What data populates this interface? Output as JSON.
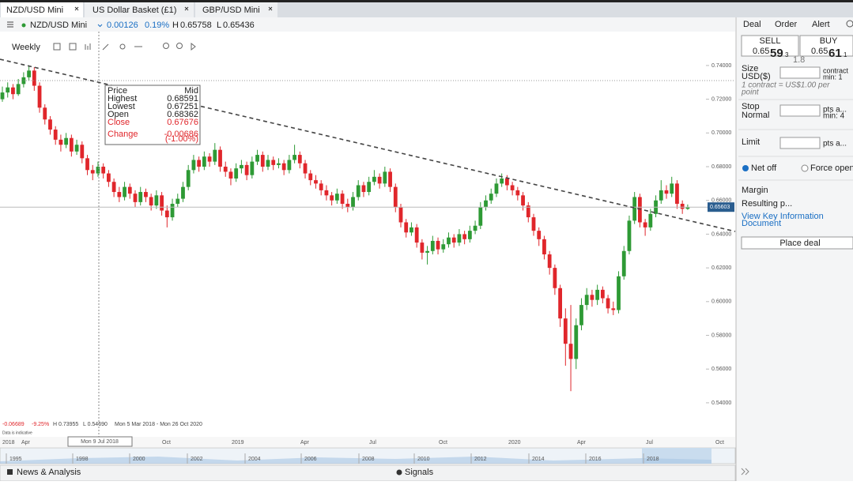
{
  "tabs": [
    "NZD/USD Mini",
    "US Dollar Basket (£1)",
    "GBP/USD Mini"
  ],
  "instrument": {
    "name": "NZD/USD Mini",
    "change": "0.00126",
    "change_pct": "0.19%",
    "high_label": "H",
    "high": "0.65758",
    "low_label": "L",
    "low": "0.65436"
  },
  "toolbar": {
    "interval": "Weekly"
  },
  "chart": {
    "type": "candlestick",
    "colors": {
      "up": "#2e9a35",
      "down": "#e0262b"
    },
    "ylim": [
      0.5306,
      0.7601
    ],
    "yticks": [
      {
        "value": 0.74,
        "label": "0.74000"
      },
      {
        "value": 0.72,
        "label": "0.72000"
      },
      {
        "value": 0.7,
        "label": "0.70000"
      },
      {
        "value": 0.68,
        "label": "0.68000"
      },
      {
        "value": 0.66,
        "label": "0.66000"
      },
      {
        "value": 0.64,
        "label": "0.64000"
      },
      {
        "value": 0.62,
        "label": "0.62000"
      },
      {
        "value": 0.6,
        "label": "0.60000"
      },
      {
        "value": 0.58,
        "label": "0.58000"
      },
      {
        "value": 0.56,
        "label": "0.56000"
      },
      {
        "value": 0.54,
        "label": "0.54000"
      }
    ],
    "current_price": {
      "value": 0.65603,
      "label": "0.65603"
    },
    "candles": [
      [
        0.72,
        0.7275,
        0.7185,
        0.724
      ],
      [
        0.724,
        0.73,
        0.721,
        0.727
      ],
      [
        0.727,
        0.729,
        0.72,
        0.723
      ],
      [
        0.723,
        0.732,
        0.722,
        0.729
      ],
      [
        0.729,
        0.736,
        0.727,
        0.733
      ],
      [
        0.733,
        0.7396,
        0.731,
        0.737
      ],
      [
        0.737,
        0.739,
        0.725,
        0.728
      ],
      [
        0.728,
        0.73,
        0.712,
        0.715
      ],
      [
        0.715,
        0.717,
        0.705,
        0.708
      ],
      [
        0.708,
        0.71,
        0.699,
        0.702
      ],
      [
        0.702,
        0.704,
        0.693,
        0.696
      ],
      [
        0.696,
        0.699,
        0.689,
        0.693
      ],
      [
        0.693,
        0.7,
        0.691,
        0.697
      ],
      [
        0.697,
        0.699,
        0.686,
        0.689
      ],
      [
        0.689,
        0.696,
        0.687,
        0.693
      ],
      [
        0.693,
        0.695,
        0.682,
        0.685
      ],
      [
        0.685,
        0.687,
        0.675,
        0.678
      ],
      [
        0.678,
        0.681,
        0.672,
        0.676
      ],
      [
        0.676,
        0.683,
        0.674,
        0.68
      ],
      [
        0.68,
        0.682,
        0.673,
        0.676
      ],
      [
        0.676,
        0.678,
        0.668,
        0.671
      ],
      [
        0.671,
        0.673,
        0.662,
        0.665
      ],
      [
        0.665,
        0.668,
        0.659,
        0.662
      ],
      [
        0.662,
        0.671,
        0.66,
        0.668
      ],
      [
        0.668,
        0.67,
        0.661,
        0.664
      ],
      [
        0.664,
        0.666,
        0.656,
        0.659
      ],
      [
        0.659,
        0.668,
        0.657,
        0.665
      ],
      [
        0.665,
        0.667,
        0.659,
        0.662
      ],
      [
        0.662,
        0.664,
        0.654,
        0.657
      ],
      [
        0.657,
        0.666,
        0.655,
        0.663
      ],
      [
        0.663,
        0.665,
        0.651,
        0.654
      ],
      [
        0.654,
        0.657,
        0.644,
        0.65
      ],
      [
        0.65,
        0.661,
        0.648,
        0.658
      ],
      [
        0.658,
        0.664,
        0.656,
        0.661
      ],
      [
        0.661,
        0.671,
        0.659,
        0.668
      ],
      [
        0.668,
        0.681,
        0.666,
        0.678
      ],
      [
        0.678,
        0.687,
        0.676,
        0.684
      ],
      [
        0.684,
        0.686,
        0.677,
        0.68
      ],
      [
        0.68,
        0.689,
        0.678,
        0.686
      ],
      [
        0.686,
        0.688,
        0.68,
        0.683
      ],
      [
        0.683,
        0.694,
        0.681,
        0.69
      ],
      [
        0.69,
        0.692,
        0.677,
        0.68
      ],
      [
        0.68,
        0.683,
        0.674,
        0.677
      ],
      [
        0.677,
        0.679,
        0.669,
        0.673
      ],
      [
        0.673,
        0.682,
        0.671,
        0.679
      ],
      [
        0.679,
        0.684,
        0.676,
        0.681
      ],
      [
        0.681,
        0.683,
        0.672,
        0.675
      ],
      [
        0.675,
        0.686,
        0.673,
        0.683
      ],
      [
        0.683,
        0.69,
        0.681,
        0.687
      ],
      [
        0.687,
        0.689,
        0.677,
        0.68
      ],
      [
        0.68,
        0.687,
        0.678,
        0.684
      ],
      [
        0.684,
        0.686,
        0.678,
        0.681
      ],
      [
        0.681,
        0.685,
        0.679,
        0.682
      ],
      [
        0.682,
        0.684,
        0.675,
        0.678
      ],
      [
        0.678,
        0.687,
        0.676,
        0.684
      ],
      [
        0.684,
        0.693,
        0.682,
        0.687
      ],
      [
        0.687,
        0.689,
        0.679,
        0.682
      ],
      [
        0.682,
        0.684,
        0.673,
        0.676
      ],
      [
        0.676,
        0.678,
        0.669,
        0.672
      ],
      [
        0.672,
        0.675,
        0.667,
        0.67
      ],
      [
        0.67,
        0.672,
        0.663,
        0.666
      ],
      [
        0.666,
        0.669,
        0.66,
        0.663
      ],
      [
        0.663,
        0.665,
        0.657,
        0.66
      ],
      [
        0.66,
        0.667,
        0.658,
        0.664
      ],
      [
        0.664,
        0.666,
        0.655,
        0.658
      ],
      [
        0.658,
        0.661,
        0.653,
        0.656
      ],
      [
        0.656,
        0.665,
        0.654,
        0.662
      ],
      [
        0.662,
        0.672,
        0.66,
        0.669
      ],
      [
        0.669,
        0.671,
        0.662,
        0.665
      ],
      [
        0.665,
        0.674,
        0.663,
        0.671
      ],
      [
        0.671,
        0.678,
        0.669,
        0.674
      ],
      [
        0.674,
        0.676,
        0.667,
        0.67
      ],
      [
        0.67,
        0.68,
        0.668,
        0.677
      ],
      [
        0.677,
        0.679,
        0.665,
        0.668
      ],
      [
        0.668,
        0.67,
        0.653,
        0.656
      ],
      [
        0.656,
        0.658,
        0.644,
        0.647
      ],
      [
        0.647,
        0.649,
        0.638,
        0.641
      ],
      [
        0.641,
        0.647,
        0.639,
        0.644
      ],
      [
        0.644,
        0.646,
        0.632,
        0.635
      ],
      [
        0.635,
        0.637,
        0.625,
        0.629
      ],
      [
        0.629,
        0.633,
        0.622,
        0.63
      ],
      [
        0.63,
        0.639,
        0.628,
        0.636
      ],
      [
        0.636,
        0.638,
        0.628,
        0.631
      ],
      [
        0.631,
        0.637,
        0.629,
        0.634
      ],
      [
        0.634,
        0.641,
        0.632,
        0.638
      ],
      [
        0.638,
        0.64,
        0.632,
        0.635
      ],
      [
        0.635,
        0.643,
        0.633,
        0.64
      ],
      [
        0.64,
        0.642,
        0.634,
        0.637
      ],
      [
        0.637,
        0.645,
        0.635,
        0.642
      ],
      [
        0.642,
        0.648,
        0.64,
        0.645
      ],
      [
        0.645,
        0.659,
        0.643,
        0.656
      ],
      [
        0.656,
        0.663,
        0.654,
        0.66
      ],
      [
        0.66,
        0.667,
        0.658,
        0.664
      ],
      [
        0.664,
        0.673,
        0.662,
        0.67
      ],
      [
        0.67,
        0.676,
        0.668,
        0.673
      ],
      [
        0.673,
        0.675,
        0.666,
        0.669
      ],
      [
        0.669,
        0.671,
        0.663,
        0.666
      ],
      [
        0.666,
        0.668,
        0.66,
        0.663
      ],
      [
        0.663,
        0.665,
        0.654,
        0.657
      ],
      [
        0.657,
        0.659,
        0.647,
        0.65
      ],
      [
        0.65,
        0.652,
        0.639,
        0.642
      ],
      [
        0.642,
        0.644,
        0.633,
        0.637
      ],
      [
        0.637,
        0.639,
        0.625,
        0.628
      ],
      [
        0.628,
        0.63,
        0.616,
        0.62
      ],
      [
        0.62,
        0.622,
        0.604,
        0.608
      ],
      [
        0.608,
        0.61,
        0.585,
        0.59
      ],
      [
        0.59,
        0.596,
        0.562,
        0.575
      ],
      [
        0.575,
        0.598,
        0.5469,
        0.566
      ],
      [
        0.566,
        0.59,
        0.56,
        0.586
      ],
      [
        0.586,
        0.602,
        0.583,
        0.598
      ],
      [
        0.598,
        0.608,
        0.595,
        0.604
      ],
      [
        0.604,
        0.607,
        0.597,
        0.601
      ],
      [
        0.601,
        0.61,
        0.598,
        0.607
      ],
      [
        0.607,
        0.609,
        0.599,
        0.602
      ],
      [
        0.602,
        0.604,
        0.593,
        0.596
      ],
      [
        0.596,
        0.6,
        0.592,
        0.595
      ],
      [
        0.595,
        0.618,
        0.593,
        0.615
      ],
      [
        0.615,
        0.633,
        0.613,
        0.63
      ],
      [
        0.63,
        0.651,
        0.628,
        0.648
      ],
      [
        0.648,
        0.665,
        0.646,
        0.662
      ],
      [
        0.662,
        0.664,
        0.644,
        0.647
      ],
      [
        0.647,
        0.649,
        0.639,
        0.644
      ],
      [
        0.644,
        0.655,
        0.642,
        0.652
      ],
      [
        0.652,
        0.663,
        0.65,
        0.66
      ],
      [
        0.66,
        0.672,
        0.658,
        0.666
      ],
      [
        0.666,
        0.669,
        0.661,
        0.664
      ],
      [
        0.664,
        0.674,
        0.662,
        0.67
      ],
      [
        0.67,
        0.672,
        0.655,
        0.658
      ],
      [
        0.658,
        0.66,
        0.652,
        0.655
      ],
      [
        0.655,
        0.6576,
        0.6544,
        0.656
      ]
    ],
    "info_box": {
      "header_left": "Price",
      "header_right": "Mid",
      "rows": [
        [
          "Highest",
          "0.68591"
        ],
        [
          "Lowest",
          "0.67251"
        ],
        [
          "Open",
          "0.68362"
        ],
        [
          "Close",
          "0.67676"
        ],
        [
          "Change",
          "-0.00686"
        ]
      ],
      "change_pct": "(-1.00%)"
    },
    "summary": {
      "change": "-0.06689",
      "change_pct": "-9.25%",
      "high": "H 0.73955",
      "low": "L 0.54690",
      "range": "Mon 5 Mar 2018 - Mon 26 Oct 2020",
      "note": "Data is indicative"
    },
    "x_labels": [
      "2018",
      "Apr",
      "Oct",
      "2019",
      "Apr",
      "Jul",
      "Oct",
      "2020",
      "Apr",
      "Jul",
      "Oct"
    ],
    "cursor_date": "Mon 9 Jul 2018",
    "navigator_labels": [
      "1995",
      "1998",
      "2000",
      "2002",
      "2004",
      "2006",
      "2008",
      "2010",
      "2012",
      "2014",
      "2016",
      "2018"
    ]
  },
  "panel": {
    "tabs": [
      "Deal",
      "Order",
      "Alert"
    ],
    "sell": {
      "label": "SELL",
      "price_main": "0.65",
      "price_big": "59",
      "price_small": "3"
    },
    "buy": {
      "label": "BUY",
      "price_main": "0.65",
      "price_big": "61",
      "price_small": "1"
    },
    "spread": "1.8",
    "size_label": "Size",
    "size_unit": "USD($)",
    "size_note1": "contract",
    "size_note2": "min: 1",
    "contract_note1": "1 contract = US$1.00 per",
    "contract_note2": "point",
    "stop_label": "Stop",
    "stop_type": "Normal",
    "stop_note1": "pts a...",
    "stop_note2": "min: 4",
    "limit_label": "Limit",
    "limit_note": "pts a...",
    "net_off": "Net off",
    "force_open": "Force open",
    "margin": "Margin",
    "resulting": "Resulting p...",
    "kid1": "View Key Information",
    "kid2": "Document",
    "place_deal": "Place deal"
  },
  "footer": {
    "news": "News & Analysis",
    "signals": "Signals"
  }
}
